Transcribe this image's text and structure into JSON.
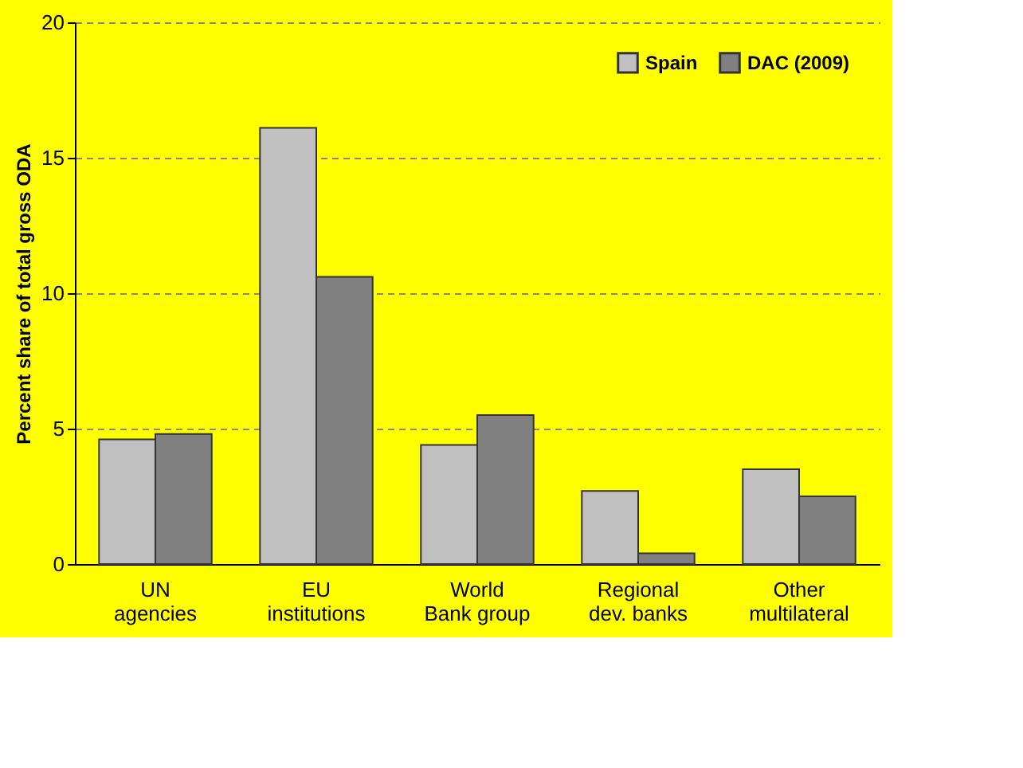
{
  "chart_data": {
    "type": "bar",
    "ylabel": "Percent share of total gross ODA",
    "categories": [
      "UN agencies",
      "EU institutions",
      "World Bank group",
      "Regional dev. banks",
      "Other multilateral"
    ],
    "series": [
      {
        "name": "Spain",
        "color": "#c0c0c0",
        "values": [
          4.6,
          16.1,
          4.4,
          2.7,
          3.5
        ]
      },
      {
        "name": "DAC (2009)",
        "color": "#808080",
        "values": [
          4.8,
          10.6,
          5.5,
          0.4,
          2.5
        ]
      }
    ],
    "ylim": [
      0,
      20
    ],
    "yticks": [
      0,
      5,
      10,
      15,
      20
    ],
    "grid": "y",
    "legend": "top right"
  }
}
